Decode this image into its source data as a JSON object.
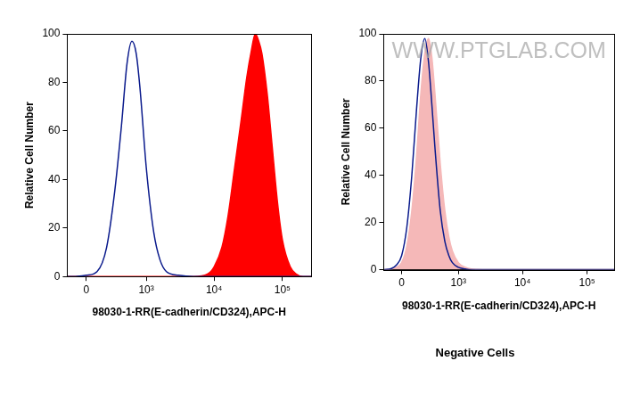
{
  "chart_data": [
    {
      "type": "line",
      "xlabel": "98030-1-RR(E-cadherin/CD324),APC-H",
      "ylabel": "Relative Cell Number",
      "x": [
        -185,
        -100,
        0,
        100,
        200,
        300,
        400,
        500,
        600,
        700,
        800,
        1000,
        1300,
        1600,
        2000,
        3000,
        5000,
        8000,
        10000,
        13000,
        16000,
        20000,
        25000,
        30000,
        35000,
        40000,
        45000,
        50000,
        60000,
        70000,
        85000,
        100000,
        130000,
        160000,
        200000,
        262144
      ],
      "series": [
        {
          "type": "line",
          "color": "#0a1a8c",
          "values": [
            0,
            0,
            0.5,
            2,
            12,
            35,
            62,
            88,
            97,
            92,
            78,
            45,
            18,
            7,
            2,
            0.5,
            0,
            0,
            0,
            0,
            0,
            0,
            0,
            0,
            0,
            0,
            0,
            0,
            0,
            0,
            0,
            0,
            0,
            0,
            0,
            0
          ]
        },
        {
          "type": "area",
          "color": "#ff0000",
          "values": [
            0,
            0,
            0,
            0,
            0,
            0,
            0,
            0,
            0,
            0,
            0,
            0,
            0,
            0,
            0,
            0,
            0,
            1,
            4,
            12,
            25,
            45,
            65,
            82,
            93,
            100,
            97,
            92,
            75,
            55,
            30,
            15,
            4,
            1,
            0,
            0
          ]
        }
      ],
      "xlim": [
        -185,
        262144
      ],
      "xticks": [
        0,
        {
          "value": 1000,
          "label": "10³"
        },
        {
          "value": 10000,
          "label": "10⁴"
        },
        {
          "value": 100000,
          "label": "10⁵"
        }
      ],
      "ylim": [
        0,
        100
      ],
      "yticks": [
        0,
        20,
        40,
        60,
        80,
        100
      ],
      "grid": false
    },
    {
      "type": "line",
      "subtitle": "Negative Cells",
      "annotations": [
        "WWW.PTGLAB.COM"
      ],
      "xlabel": "98030-1-RR(E-cadherin/CD324),APC-H",
      "ylabel": "Relative Cell Number",
      "x": [
        -185,
        -100,
        -50,
        0,
        50,
        100,
        150,
        200,
        250,
        300,
        350,
        400,
        500,
        600,
        700,
        800,
        1000,
        1300,
        1600,
        2000,
        3000,
        5000,
        10000,
        100000,
        262144
      ],
      "series": [
        {
          "type": "area",
          "color": "#f5b8b8",
          "values": [
            0,
            0.3,
            1,
            3,
            10,
            25,
            48,
            75,
            92,
            98,
            90,
            75,
            45,
            25,
            14,
            8,
            3,
            1,
            0.3,
            0.1,
            0,
            0,
            0,
            0,
            0
          ]
        },
        {
          "type": "line",
          "color": "#0a1a8c",
          "values": [
            0,
            0.5,
            2,
            6,
            18,
            40,
            68,
            90,
            98,
            88,
            70,
            52,
            25,
            12,
            6,
            3,
            1,
            0.3,
            0,
            0,
            0,
            0,
            0,
            0,
            0
          ]
        }
      ],
      "xlim": [
        -185,
        262144
      ],
      "xticks": [
        0,
        {
          "value": 1000,
          "label": "10³"
        },
        {
          "value": 10000,
          "label": "10⁴"
        },
        {
          "value": 100000,
          "label": "10⁵"
        }
      ],
      "ylim": [
        0,
        100
      ],
      "yticks": [
        0,
        20,
        40,
        60,
        80,
        100
      ],
      "grid": false
    }
  ]
}
